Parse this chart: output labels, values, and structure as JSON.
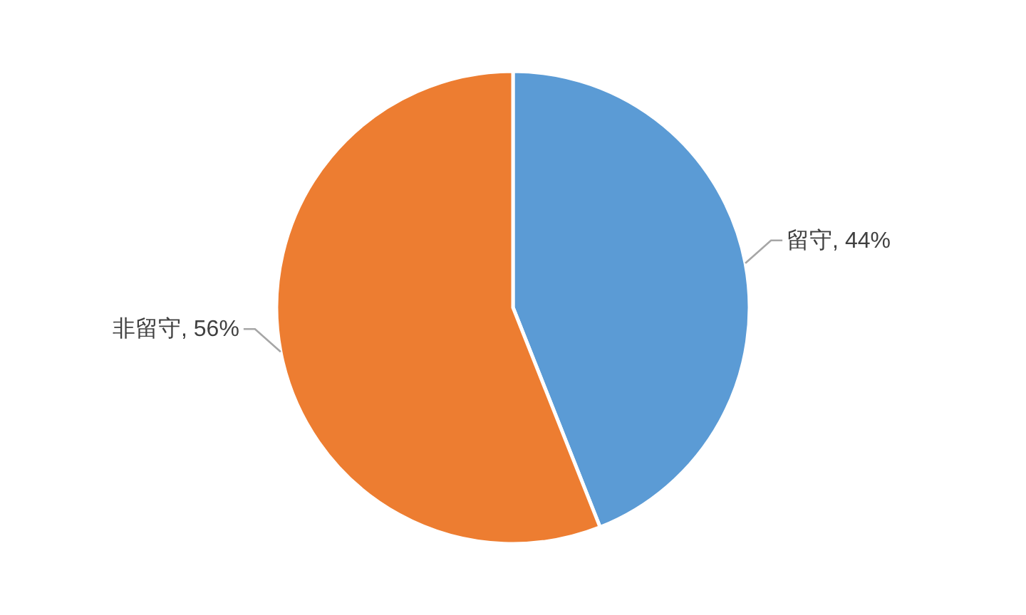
{
  "chart_data": {
    "type": "pie",
    "categories": [
      "留守",
      "非留守"
    ],
    "values": [
      44,
      56
    ],
    "colors": [
      "#5b9bd5",
      "#ed7d31"
    ],
    "value_labels": [
      ", 44%",
      ", 56%"
    ]
  }
}
